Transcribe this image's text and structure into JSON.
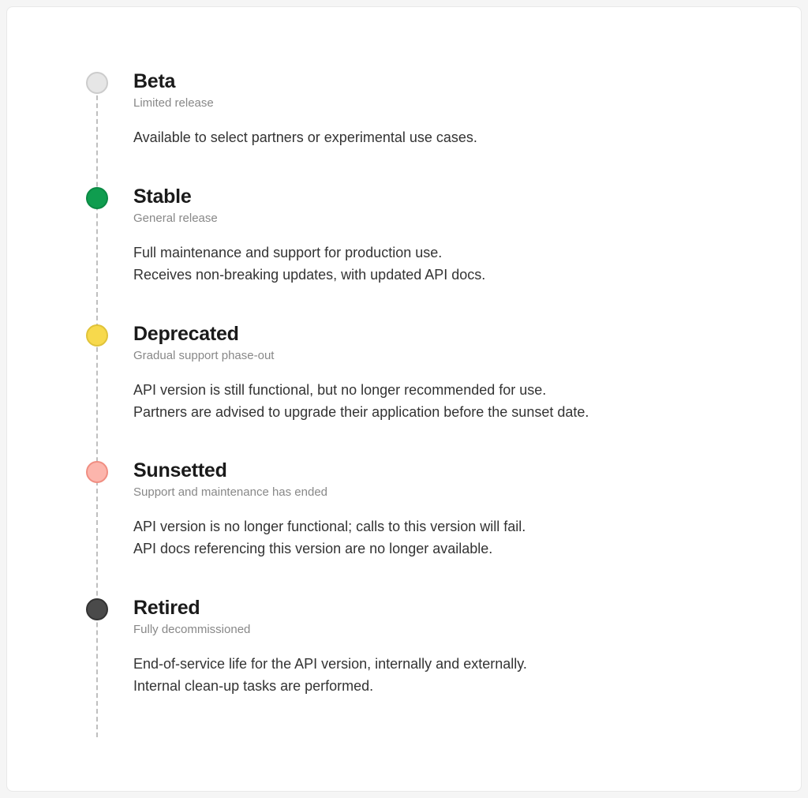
{
  "diagram": {
    "type": "timeline",
    "orientation": "vertical",
    "background_color": "#ffffff",
    "card_border_color": "#e8e8e8",
    "card_border_radius": 8,
    "line_style": "dashed",
    "line_color": "#bfbfbf",
    "line_width": 2,
    "dot_diameter": 28,
    "dot_border_width": 2,
    "title_fontsize": 25,
    "title_color": "#1a1a1a",
    "title_weight": 600,
    "subtitle_fontsize": 15,
    "subtitle_color": "#888888",
    "description_fontsize": 18,
    "description_color": "#333333",
    "description_line_height": 1.55,
    "stages": [
      {
        "title": "Beta",
        "subtitle": "Limited release",
        "description": [
          "Available to select partners or experimental use cases."
        ],
        "dot_fill": "#e6e6e6",
        "dot_border": "#cccccc"
      },
      {
        "title": "Stable",
        "subtitle": "General release",
        "description": [
          "Full maintenance and support for production use.",
          "Receives non-breaking updates, with updated API docs."
        ],
        "dot_fill": "#0f9d4f",
        "dot_border": "#0b8a44"
      },
      {
        "title": "Deprecated",
        "subtitle": "Gradual support phase-out",
        "description": [
          "API version is still functional, but no longer recommended for use.",
          "Partners are advised to upgrade their application before the sunset date."
        ],
        "dot_fill": "#f7d94c",
        "dot_border": "#e0c33a"
      },
      {
        "title": "Sunsetted",
        "subtitle": "Support and maintenance has ended",
        "description": [
          "API version is no longer functional; calls to this version will fail.",
          "API docs referencing this version are no longer available."
        ],
        "dot_fill": "#fcb5ac",
        "dot_border": "#f08e82"
      },
      {
        "title": "Retired",
        "subtitle": "Fully decommissioned",
        "description": [
          "End-of-service life for the API version, internally and externally.",
          "Internal clean-up tasks are performed."
        ],
        "dot_fill": "#4a4a4a",
        "dot_border": "#333333"
      }
    ]
  }
}
